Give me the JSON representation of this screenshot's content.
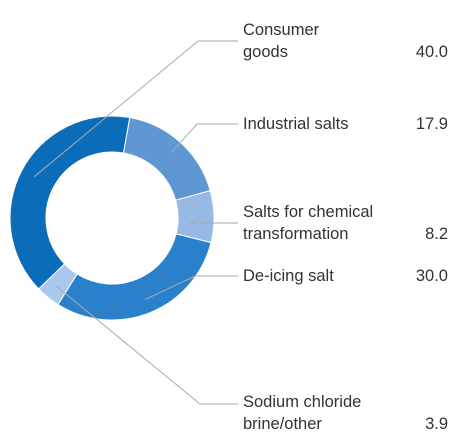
{
  "chart_data": {
    "type": "donut",
    "categories": [
      "Industrial salts",
      "Salts for chemical transformation",
      "De-icing salt",
      "Sodium chloride brine/other",
      "Consumer goods"
    ],
    "values": [
      17.9,
      8.2,
      30.0,
      3.9,
      40.0
    ],
    "value_labels": [
      "17.9",
      "8.2",
      "30.0",
      "3.9",
      "40.0"
    ],
    "colors": [
      "#5f97d3",
      "#97bae4",
      "#2b80cb",
      "#aac7ed",
      "#0b6db9"
    ]
  }
}
